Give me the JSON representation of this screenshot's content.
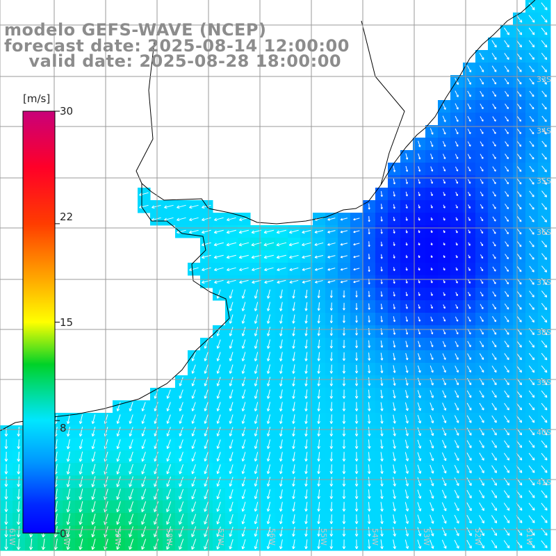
{
  "title": {
    "model": "modelo GEFS-WAVE (NCEP)",
    "forecast": "forecast date: 2025-08-14 12:00:00",
    "valid": "    valid date: 2025-08-28 18:00:00"
  },
  "colorbar": {
    "unit": "[m/s]",
    "ticks": [
      "30",
      "22",
      "15",
      "8",
      "0"
    ],
    "tick_values": [
      30,
      22,
      15,
      8,
      0
    ],
    "range": [
      0,
      30
    ]
  },
  "lat_labels": [
    "33S",
    "34S",
    "35S",
    "36S",
    "37S",
    "38S",
    "39S",
    "40S",
    "41S"
  ],
  "lon_labels": [
    "61W",
    "60W",
    "59W",
    "58W",
    "57W",
    "56W",
    "55W",
    "54W",
    "53W",
    "52W",
    "51W"
  ],
  "colors": {
    "land": "#ffffff",
    "coastline": "#000000",
    "grid": "#9a9a9a",
    "arrows": "#ffffff",
    "title_text": "#8c8c8c"
  },
  "chart_data": {
    "type": "heatmap",
    "variable": "wind speed",
    "units": "m/s",
    "colormap_stops": [
      0,
      8,
      15,
      22,
      30
    ],
    "colormap_colors": [
      "#0000ff",
      "#00e5ff",
      "#00c800",
      "#ffff00",
      "#ff0000",
      "#c8007a"
    ],
    "speed_summary": "about 0–4 m/s over the calm offshore area east of Uruguay; 6–8 m/s near the Rio de la Plata mouth; up to about 10–11 m/s to the south-west",
    "wind_direction_summary": "winds blow mostly from the north-east over most of the area (toward the south-west); the arrows run along the coast near the shore"
  }
}
